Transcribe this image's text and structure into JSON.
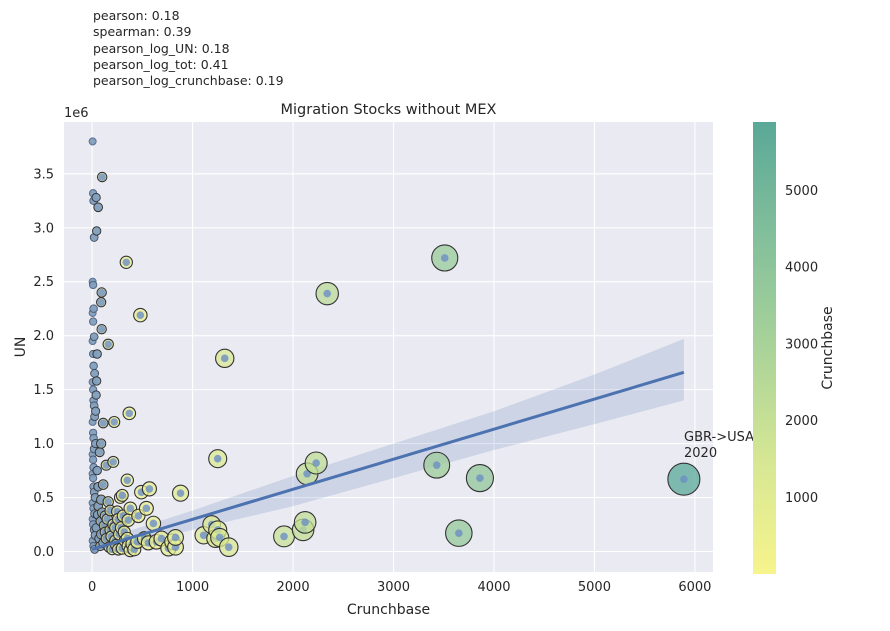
{
  "stats": [
    "pearson: 0.18",
    "spearman: 0.39",
    "pearson_log_UN: 0.18",
    "pearson_log_tot: 0.41",
    "pearson_log_crunchbase: 0.19"
  ],
  "chart_data": {
    "type": "scatter",
    "title": "Migration Stocks without MEX",
    "xlabel": "Crunchbase",
    "ylabel": "UN",
    "y_offset_label": "1e6",
    "xlim": [
      -280,
      6180
    ],
    "ylim": [
      -0.19,
      3.98
    ],
    "xticks": [
      0,
      1000,
      2000,
      3000,
      4000,
      5000,
      6000
    ],
    "xtick_labels": [
      "0",
      "1000",
      "2000",
      "3000",
      "4000",
      "5000",
      "6000"
    ],
    "yticks": [
      0.0,
      0.5,
      1.0,
      1.5,
      2.0,
      2.5,
      3.0,
      3.5
    ],
    "ytick_labels": [
      "0.0",
      "0.5",
      "1.0",
      "1.5",
      "2.0",
      "2.5",
      "3.0",
      "3.5"
    ],
    "grid": true,
    "colorbar": {
      "label": "Crunchbase",
      "range": [
        0,
        5890
      ],
      "ticks": [
        1000,
        2000,
        3000,
        4000,
        5000
      ],
      "tick_labels": [
        "1000",
        "2000",
        "3000",
        "4000",
        "5000"
      ],
      "colors": [
        "#f7f48c",
        "#d6e794",
        "#a9d399",
        "#82bf9b",
        "#5aa898"
      ]
    },
    "regression": {
      "line": [
        [
          0,
          0.02
        ],
        [
          5890,
          1.66
        ]
      ],
      "ci_upper": [
        [
          0,
          0.08
        ],
        [
          1000,
          0.38
        ],
        [
          2000,
          0.7
        ],
        [
          3000,
          1.0
        ],
        [
          4000,
          1.3
        ],
        [
          5000,
          1.64
        ],
        [
          5890,
          1.97
        ]
      ],
      "ci_lower": [
        [
          0,
          -0.02
        ],
        [
          1000,
          0.2
        ],
        [
          2000,
          0.42
        ],
        [
          3000,
          0.68
        ],
        [
          4000,
          0.94
        ],
        [
          5000,
          1.18
        ],
        [
          5890,
          1.4
        ]
      ],
      "color": "#4c72b0"
    },
    "annotation": {
      "x": 5890,
      "y": 0.67,
      "text_lines": [
        "GBR->USA",
        "2020"
      ]
    },
    "points": [
      [
        5890,
        0.67
      ],
      [
        3510,
        2.72
      ],
      [
        2340,
        2.39
      ],
      [
        3860,
        0.68
      ],
      [
        3430,
        0.8
      ],
      [
        3650,
        0.17
      ],
      [
        2230,
        0.82
      ],
      [
        2140,
        0.72
      ],
      [
        2120,
        0.27
      ],
      [
        2100,
        0.2
      ],
      [
        1910,
        0.14
      ],
      [
        1320,
        1.79
      ],
      [
        1250,
        0.86
      ],
      [
        1360,
        0.04
      ],
      [
        1270,
        0.13
      ],
      [
        1250,
        0.2
      ],
      [
        1190,
        0.25
      ],
      [
        1230,
        0.12
      ],
      [
        1110,
        0.15
      ],
      [
        880,
        0.54
      ],
      [
        830,
        0.04
      ],
      [
        760,
        0.03
      ],
      [
        800,
        0.09
      ],
      [
        830,
        0.13
      ],
      [
        690,
        0.12
      ],
      [
        640,
        0.09
      ],
      [
        570,
        0.58
      ],
      [
        560,
        0.08
      ],
      [
        490,
        0.55
      ],
      [
        480,
        2.19
      ],
      [
        460,
        0.33
      ],
      [
        540,
        0.4
      ],
      [
        610,
        0.26
      ],
      [
        520,
        0.12
      ],
      [
        450,
        0.09
      ],
      [
        380,
        0.4
      ],
      [
        370,
        1.28
      ],
      [
        340,
        2.68
      ],
      [
        350,
        0.66
      ],
      [
        360,
        0.29
      ],
      [
        300,
        0.52
      ],
      [
        280,
        0.5
      ],
      [
        250,
        0.37
      ],
      [
        220,
        1.2
      ],
      [
        210,
        0.83
      ],
      [
        230,
        0.22
      ],
      [
        160,
        1.92
      ],
      [
        140,
        0.8
      ],
      [
        110,
        1.19
      ],
      [
        100,
        3.47
      ],
      [
        95,
        2.4
      ],
      [
        90,
        2.31
      ],
      [
        95,
        2.06
      ],
      [
        90,
        1.0
      ],
      [
        60,
        3.19
      ],
      [
        40,
        3.28
      ],
      [
        45,
        2.97
      ],
      [
        50,
        1.83
      ],
      [
        45,
        1.58
      ],
      [
        40,
        1.45
      ],
      [
        35,
        1.3
      ],
      [
        5,
        3.8
      ],
      [
        10,
        3.32
      ],
      [
        15,
        3.25
      ],
      [
        20,
        2.91
      ],
      [
        5,
        2.5
      ],
      [
        10,
        2.47
      ],
      [
        15,
        2.25
      ],
      [
        5,
        2.21
      ],
      [
        10,
        2.13
      ],
      [
        20,
        1.99
      ],
      [
        5,
        1.95
      ],
      [
        10,
        1.83
      ],
      [
        15,
        1.72
      ],
      [
        25,
        1.65
      ],
      [
        5,
        1.57
      ],
      [
        10,
        1.5
      ],
      [
        15,
        1.4
      ],
      [
        20,
        1.35
      ],
      [
        25,
        1.25
      ],
      [
        5,
        1.2
      ],
      [
        10,
        1.1
      ],
      [
        15,
        1.05
      ],
      [
        20,
        0.95
      ],
      [
        5,
        0.9
      ],
      [
        10,
        0.85
      ],
      [
        15,
        0.78
      ],
      [
        5,
        0.72
      ],
      [
        10,
        0.68
      ],
      [
        15,
        0.6
      ],
      [
        20,
        0.55
      ],
      [
        30,
        0.5
      ],
      [
        5,
        0.45
      ],
      [
        15,
        0.4
      ],
      [
        25,
        0.35
      ],
      [
        5,
        0.3
      ],
      [
        10,
        0.25
      ],
      [
        20,
        0.2
      ],
      [
        30,
        0.15
      ],
      [
        5,
        0.1
      ],
      [
        15,
        0.05
      ],
      [
        25,
        0.02
      ],
      [
        40,
        0.22
      ],
      [
        55,
        0.34
      ],
      [
        70,
        0.12
      ],
      [
        85,
        0.28
      ],
      [
        100,
        0.36
      ],
      [
        115,
        0.08
      ],
      [
        130,
        0.18
      ],
      [
        150,
        0.3
      ],
      [
        170,
        0.04
      ],
      [
        190,
        0.14
      ],
      [
        210,
        0.25
      ],
      [
        240,
        0.06
      ],
      [
        270,
        0.16
      ],
      [
        300,
        0.03
      ],
      [
        330,
        0.1
      ],
      [
        360,
        0.05
      ],
      [
        400,
        0.07
      ],
      [
        420,
        0.02
      ],
      [
        60,
        0.42
      ],
      [
        80,
        0.05
      ],
      [
        120,
        0.24
      ],
      [
        140,
        0.12
      ],
      [
        180,
        0.38
      ],
      [
        200,
        0.02
      ],
      [
        260,
        0.3
      ],
      [
        290,
        0.22
      ],
      [
        320,
        0.18
      ],
      [
        350,
        0.12
      ],
      [
        380,
        0.01
      ],
      [
        60,
        0.6
      ],
      [
        75,
        0.92
      ],
      [
        90,
        0.48
      ],
      [
        110,
        0.62
      ],
      [
        130,
        0.33
      ],
      [
        50,
        0.75
      ],
      [
        35,
        1.0
      ],
      [
        160,
        0.46
      ],
      [
        180,
        0.2
      ],
      [
        230,
        0.1
      ],
      [
        260,
        0.02
      ],
      [
        310,
        0.33
      ],
      [
        90,
        0.16
      ]
    ]
  }
}
